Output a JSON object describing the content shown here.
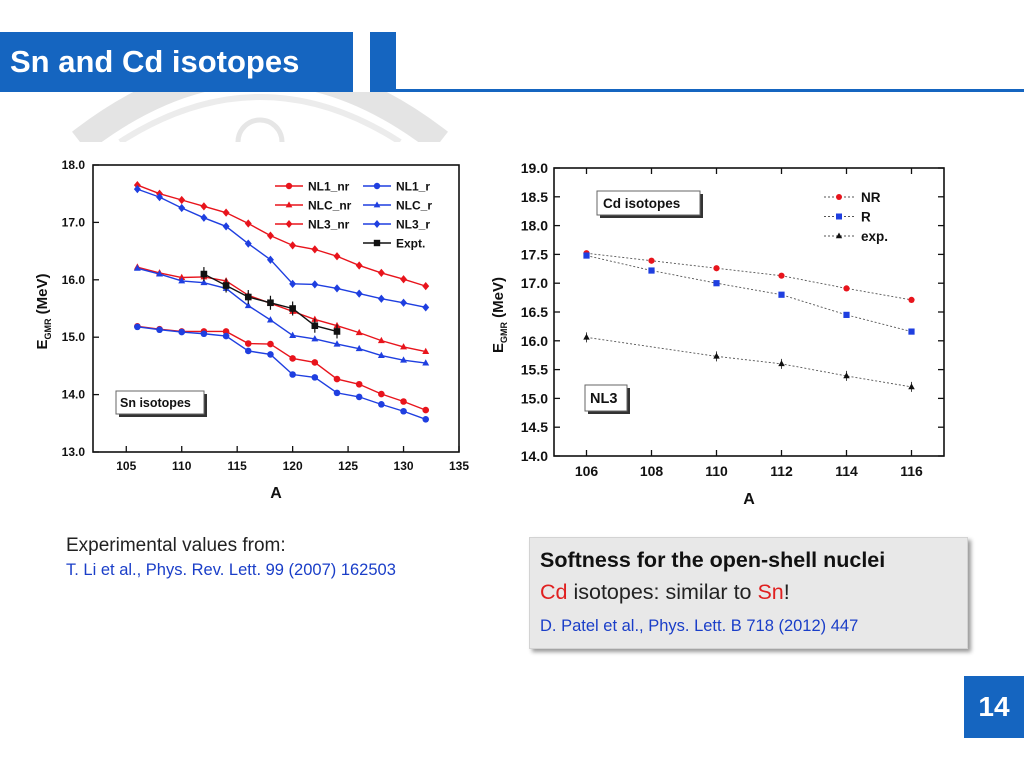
{
  "slide": {
    "title": "Sn and Cd isotopes",
    "page_number": "14",
    "colors": {
      "brand": "#1565c0",
      "red": "#e02020",
      "link_blue": "#1a3ec8"
    }
  },
  "experiment": {
    "label": "Experimental values from:",
    "reference": "T. Li et al., Phys. Rev. Lett. 99 (2007) 162503"
  },
  "note": {
    "line1": "Softness for the open-shell nuclei",
    "line2_cd": "Cd",
    "line2_mid": " isotopes: similar to ",
    "line2_sn": "Sn",
    "line2_end": "!",
    "reference": "D. Patel et al., Phys. Lett. B 718 (2012) 447"
  },
  "chart_data": [
    {
      "type": "line",
      "annotation": "Sn isotopes",
      "xlabel": "A",
      "ylabel_main": "E",
      "ylabel_sub": "GMR",
      "ylabel_unit": " (MeV)",
      "xlim": [
        102,
        135
      ],
      "ylim": [
        13.0,
        18.0
      ],
      "xticks": [
        "105",
        "110",
        "115",
        "120",
        "125",
        "130",
        "135"
      ],
      "yticks": [
        "13.0",
        "14.0",
        "15.0",
        "16.0",
        "17.0",
        "18.0"
      ],
      "legend_position": "top-right",
      "series": [
        {
          "name": "NL1_nr",
          "color": "#e8141c",
          "marker": "circle",
          "x": [
            106,
            108,
            110,
            112,
            114,
            116,
            118,
            120,
            122,
            124,
            126,
            128,
            130,
            132
          ],
          "values": [
            15.19,
            15.14,
            15.1,
            15.1,
            15.1,
            14.89,
            14.88,
            14.63,
            14.56,
            14.27,
            14.18,
            14.01,
            13.88,
            13.73
          ]
        },
        {
          "name": "NLC_nr",
          "color": "#e8141c",
          "marker": "triangle",
          "x": [
            106,
            108,
            110,
            112,
            114,
            116,
            118,
            120,
            122,
            124,
            126,
            128,
            130,
            132
          ],
          "values": [
            16.22,
            16.12,
            16.04,
            16.05,
            15.98,
            15.73,
            15.59,
            15.45,
            15.31,
            15.2,
            15.08,
            14.94,
            14.83,
            14.75
          ]
        },
        {
          "name": "NL3_nr",
          "color": "#e8141c",
          "marker": "diamond",
          "x": [
            106,
            108,
            110,
            112,
            114,
            116,
            118,
            120,
            122,
            124,
            126,
            128,
            130,
            132
          ],
          "values": [
            17.65,
            17.5,
            17.39,
            17.28,
            17.17,
            16.98,
            16.77,
            16.6,
            16.53,
            16.41,
            16.25,
            16.12,
            16.01,
            15.89
          ]
        },
        {
          "name": "NL1_r",
          "color": "#1f3fe0",
          "marker": "circle",
          "x": [
            106,
            108,
            110,
            112,
            114,
            116,
            118,
            120,
            122,
            124,
            126,
            128,
            130,
            132
          ],
          "values": [
            15.18,
            15.13,
            15.09,
            15.06,
            15.02,
            14.76,
            14.7,
            14.35,
            14.3,
            14.03,
            13.96,
            13.83,
            13.71,
            13.57
          ]
        },
        {
          "name": "NLC_r",
          "color": "#1f3fe0",
          "marker": "triangle",
          "x": [
            106,
            108,
            110,
            112,
            114,
            116,
            118,
            120,
            122,
            124,
            126,
            128,
            130,
            132
          ],
          "values": [
            16.2,
            16.1,
            15.98,
            15.95,
            15.85,
            15.55,
            15.3,
            15.03,
            14.97,
            14.88,
            14.8,
            14.68,
            14.6,
            14.55
          ]
        },
        {
          "name": "NL3_r",
          "color": "#1f3fe0",
          "marker": "diamond",
          "x": [
            106,
            108,
            110,
            112,
            114,
            116,
            118,
            120,
            122,
            124,
            126,
            128,
            130,
            132
          ],
          "values": [
            17.58,
            17.44,
            17.25,
            17.08,
            16.93,
            16.63,
            16.35,
            15.93,
            15.92,
            15.85,
            15.76,
            15.67,
            15.6,
            15.52
          ]
        },
        {
          "name": "Expt.",
          "color": "#111111",
          "marker": "square",
          "x": [
            112,
            114,
            116,
            118,
            120,
            122,
            124
          ],
          "values": [
            16.1,
            15.9,
            15.7,
            15.6,
            15.5,
            15.2,
            15.1
          ]
        }
      ]
    },
    {
      "type": "line",
      "annotation": "Cd isotopes",
      "annotation2": "NL3",
      "xlabel": "A",
      "ylabel_main": "E",
      "ylabel_sub": "GMR",
      "ylabel_unit": " (MeV)",
      "xlim": [
        105,
        117
      ],
      "ylim": [
        14.0,
        19.0
      ],
      "xticks": [
        "106",
        "108",
        "110",
        "112",
        "114",
        "116"
      ],
      "yticks": [
        "14.0",
        "14.5",
        "15.0",
        "15.5",
        "16.0",
        "16.5",
        "17.0",
        "17.5",
        "18.0",
        "18.5",
        "19.0"
      ],
      "legend_position": "top-right",
      "series": [
        {
          "name": "NR",
          "color": "#e8141c",
          "marker": "circle",
          "x": [
            106,
            108,
            110,
            112,
            114,
            116
          ],
          "values": [
            17.52,
            17.39,
            17.26,
            17.13,
            16.91,
            16.71
          ]
        },
        {
          "name": "R",
          "color": "#1f3fe0",
          "marker": "square",
          "x": [
            106,
            108,
            110,
            112,
            114,
            116
          ],
          "values": [
            17.48,
            17.22,
            17.0,
            16.8,
            16.45,
            16.16
          ]
        },
        {
          "name": "exp.",
          "color": "#111111",
          "marker": "triangle",
          "x": [
            106,
            110,
            112,
            114,
            116
          ],
          "values": [
            16.06,
            15.73,
            15.6,
            15.39,
            15.2
          ]
        }
      ]
    }
  ]
}
